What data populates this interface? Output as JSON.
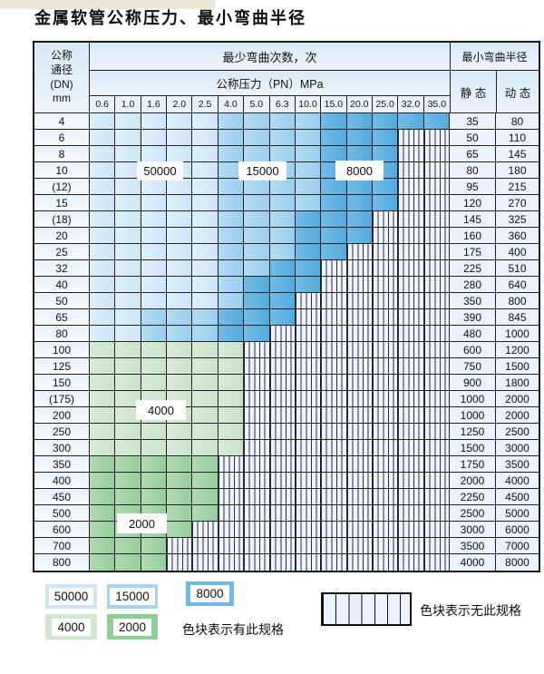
{
  "title": "金属软管公称压力、最小弯曲半径",
  "table": {
    "corner_header": "公称\n通径\n(DN)\nmm",
    "bend_times_header": "最少弯曲次数，次",
    "pressure_header": "公称压力（PN）MPa",
    "radius_header": "最小弯曲半径",
    "static_label": "静 态",
    "dynamic_label": "动 态",
    "pressure_columns": [
      "0.6",
      "1.0",
      "1.6",
      "2.0",
      "2.5",
      "4.0",
      "5.0",
      "6.3",
      "10.0",
      "15.0",
      "20.0",
      "25.0",
      "32.0",
      "35.0"
    ],
    "zone_values": {
      "b50": "50000",
      "b15": "15000",
      "b8": "8000",
      "g4": "4000",
      "g2": "2000",
      "hx": "无此规格"
    },
    "rows": [
      {
        "dn": "4",
        "static": "35",
        "dynamic": "80",
        "bands": [
          [
            "b50",
            5
          ],
          [
            "b15",
            4
          ],
          [
            "b8",
            5
          ]
        ]
      },
      {
        "dn": "6",
        "static": "50",
        "dynamic": "110",
        "bands": [
          [
            "b50",
            5
          ],
          [
            "b15",
            4
          ],
          [
            "b8",
            3
          ]
        ]
      },
      {
        "dn": "8",
        "static": "65",
        "dynamic": "145",
        "bands": [
          [
            "b50",
            5
          ],
          [
            "b15",
            4
          ],
          [
            "b8",
            3
          ]
        ]
      },
      {
        "dn": "10",
        "static": "80",
        "dynamic": "180",
        "bands": [
          [
            "b50",
            5
          ],
          [
            "b15",
            4
          ],
          [
            "b8",
            3
          ]
        ]
      },
      {
        "dn": "(12)",
        "static": "95",
        "dynamic": "215",
        "bands": [
          [
            "b50",
            5
          ],
          [
            "b15",
            4
          ],
          [
            "b8",
            3
          ]
        ]
      },
      {
        "dn": "15",
        "static": "120",
        "dynamic": "270",
        "bands": [
          [
            "b50",
            5
          ],
          [
            "b15",
            4
          ],
          [
            "b8",
            3
          ]
        ]
      },
      {
        "dn": "(18)",
        "static": "145",
        "dynamic": "325",
        "bands": [
          [
            "b50",
            5
          ],
          [
            "b15",
            3
          ],
          [
            "b8",
            3
          ]
        ]
      },
      {
        "dn": "20",
        "static": "160",
        "dynamic": "360",
        "bands": [
          [
            "b50",
            5
          ],
          [
            "b15",
            3
          ],
          [
            "b8",
            3
          ]
        ]
      },
      {
        "dn": "25",
        "static": "175",
        "dynamic": "400",
        "bands": [
          [
            "b50",
            5
          ],
          [
            "b15",
            3
          ],
          [
            "b8",
            2
          ]
        ]
      },
      {
        "dn": "32",
        "static": "225",
        "dynamic": "510",
        "bands": [
          [
            "b50",
            5
          ],
          [
            "b15",
            2
          ],
          [
            "b8",
            2
          ]
        ]
      },
      {
        "dn": "40",
        "static": "280",
        "dynamic": "640",
        "bands": [
          [
            "b50",
            5
          ],
          [
            "b15",
            1
          ],
          [
            "b8",
            3
          ]
        ]
      },
      {
        "dn": "50",
        "static": "350",
        "dynamic": "800",
        "bands": [
          [
            "b50",
            5
          ],
          [
            "b15",
            1
          ],
          [
            "b8",
            2
          ]
        ]
      },
      {
        "dn": "65",
        "static": "390",
        "dynamic": "845",
        "bands": [
          [
            "b50",
            2
          ],
          [
            "b15",
            3
          ],
          [
            "b8",
            3
          ]
        ]
      },
      {
        "dn": "80",
        "static": "480",
        "dynamic": "1000",
        "bands": [
          [
            "b50",
            2
          ],
          [
            "b15",
            3
          ],
          [
            "b8",
            2
          ]
        ]
      },
      {
        "dn": "100",
        "static": "600",
        "dynamic": "1200",
        "bands": [
          [
            "g4",
            6
          ]
        ]
      },
      {
        "dn": "125",
        "static": "750",
        "dynamic": "1500",
        "bands": [
          [
            "g4",
            6
          ]
        ]
      },
      {
        "dn": "150",
        "static": "900",
        "dynamic": "1800",
        "bands": [
          [
            "g4",
            6
          ]
        ]
      },
      {
        "dn": "(175)",
        "static": "1000",
        "dynamic": "2000",
        "bands": [
          [
            "g4",
            6
          ]
        ]
      },
      {
        "dn": "200",
        "static": "1000",
        "dynamic": "2000",
        "bands": [
          [
            "g4",
            6
          ]
        ]
      },
      {
        "dn": "250",
        "static": "1250",
        "dynamic": "2500",
        "bands": [
          [
            "g4",
            6
          ]
        ]
      },
      {
        "dn": "300",
        "static": "1500",
        "dynamic": "3000",
        "bands": [
          [
            "g4",
            6
          ]
        ]
      },
      {
        "dn": "350",
        "static": "1750",
        "dynamic": "3500",
        "bands": [
          [
            "g2",
            5
          ]
        ]
      },
      {
        "dn": "400",
        "static": "2000",
        "dynamic": "4000",
        "bands": [
          [
            "g2",
            5
          ]
        ]
      },
      {
        "dn": "450",
        "static": "2250",
        "dynamic": "4500",
        "bands": [
          [
            "g2",
            5
          ]
        ]
      },
      {
        "dn": "500",
        "static": "2500",
        "dynamic": "5000",
        "bands": [
          [
            "g2",
            5
          ]
        ]
      },
      {
        "dn": "600",
        "static": "3000",
        "dynamic": "6000",
        "bands": [
          [
            "g2",
            4
          ]
        ]
      },
      {
        "dn": "700",
        "static": "3500",
        "dynamic": "7000",
        "bands": [
          [
            "g2",
            3
          ]
        ]
      },
      {
        "dn": "800",
        "static": "4000",
        "dynamic": "8000",
        "bands": [
          [
            "g2",
            3
          ]
        ]
      }
    ]
  },
  "overlay_labels": [
    {
      "text": "50000"
    },
    {
      "text": "15000"
    },
    {
      "text": "8000"
    },
    {
      "text": "4000"
    },
    {
      "text": "2000"
    }
  ],
  "legend": {
    "blocks": [
      {
        "text": "50000",
        "zone": "b50"
      },
      {
        "text": "15000",
        "zone": "b15"
      },
      {
        "text": "8000",
        "zone": "b8"
      },
      {
        "text": "4000",
        "zone": "g4"
      },
      {
        "text": "2000",
        "zone": "g2"
      }
    ],
    "has_spec_note": "色块表示有此规格",
    "no_spec_note": "色块表示无此规格"
  },
  "colors": {
    "zone_50000": "#cde5f6",
    "zone_15000": "#a6d4f0",
    "zone_8000": "#70b8e5",
    "zone_4000": "#d0e7d0",
    "zone_2000": "#90cd97",
    "hatch_bg": "#edf4fb",
    "grid_line": "#222222"
  }
}
